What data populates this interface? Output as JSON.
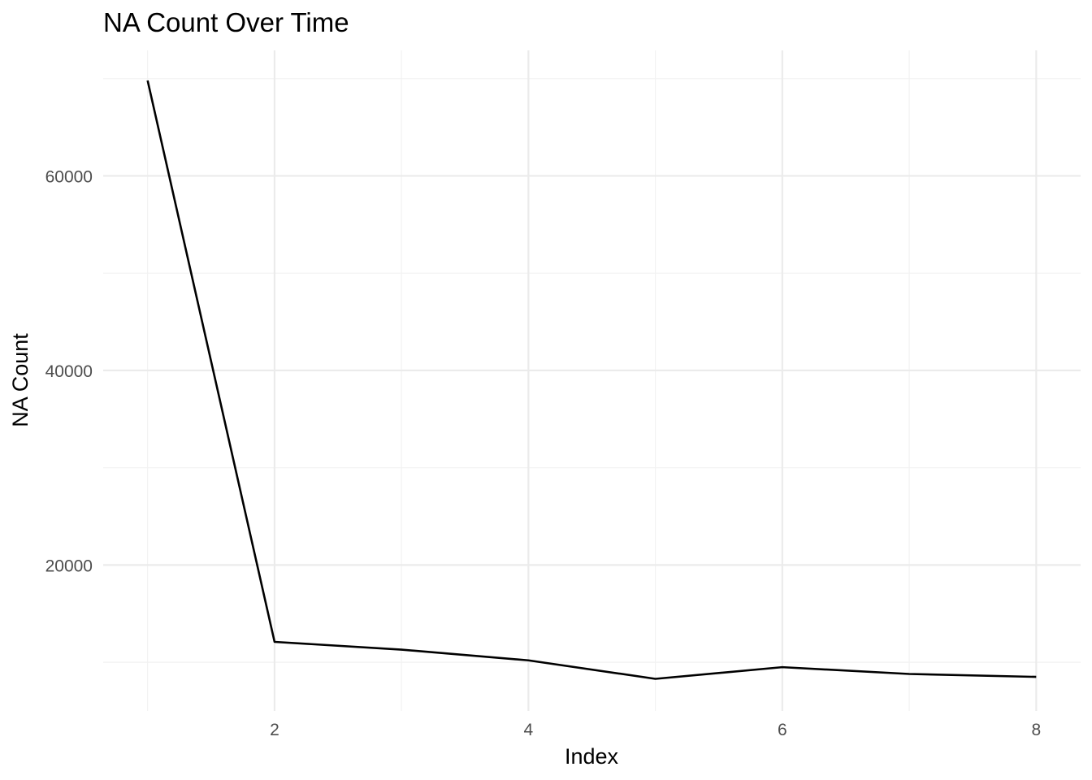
{
  "chart_data": {
    "type": "line",
    "title": "NA Count Over Time",
    "xlabel": "Index",
    "ylabel": "NA Count",
    "x": [
      1,
      2,
      3,
      4,
      5,
      6,
      7,
      8
    ],
    "series": [
      {
        "values": [
          69800,
          12100,
          11300,
          10200,
          8300,
          9500,
          8800,
          8500
        ]
      }
    ],
    "xlim": [
      0.65,
      8.35
    ],
    "ylim": [
      5000,
      72900
    ],
    "x_ticks": [
      2,
      4,
      6,
      8
    ],
    "x_tick_labels": [
      "2",
      "4",
      "6",
      "8"
    ],
    "x_minor": [
      1,
      3,
      5,
      7
    ],
    "y_ticks": [
      20000,
      40000,
      60000
    ],
    "y_tick_labels": [
      "20000",
      "40000",
      "60000"
    ],
    "y_minor": [
      10000,
      30000,
      50000,
      70000
    ],
    "grid": true,
    "legend": "none",
    "line_color": "#000000",
    "grid_color": "#ebebeb"
  }
}
